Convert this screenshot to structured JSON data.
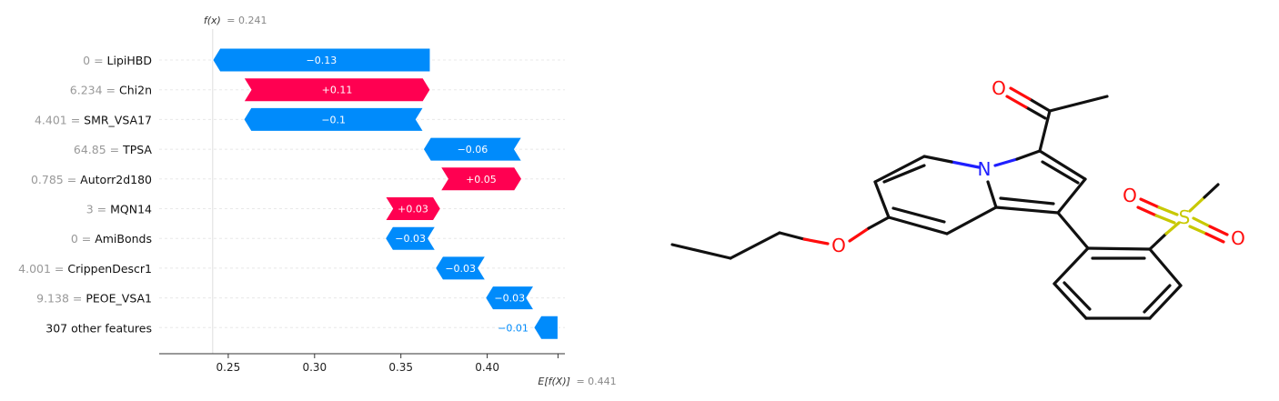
{
  "chart_data": {
    "type": "waterfall",
    "fx_label": "f(x)",
    "fx_value_text": "= 0.241",
    "fx": 0.241,
    "ex_label": "E[f(X)]",
    "ex_value_text": "= 0.441",
    "base_value": 0.441,
    "xlim": [
      0.21,
      0.445
    ],
    "xticks": [
      0.25,
      0.3,
      0.35,
      0.4
    ],
    "xtick_labels": [
      "0.25",
      "0.30",
      "0.35",
      "0.40"
    ],
    "positive_color": "#ff0051",
    "negative_color": "#008bfb",
    "features": [
      {
        "value": "0",
        "name": "LipiHBD",
        "contribution": -0.126,
        "label": "−0.13"
      },
      {
        "value": "6.234",
        "name": "Chi2n",
        "contribution": 0.108,
        "label": "+0.11"
      },
      {
        "value": "4.401",
        "name": "SMR_VSA17",
        "contribution": -0.104,
        "label": "−0.1"
      },
      {
        "value": "64.85",
        "name": "TPSA",
        "contribution": -0.057,
        "label": "−0.06"
      },
      {
        "value": "0.785",
        "name": "Autorr2d180",
        "contribution": 0.047,
        "label": "+0.05"
      },
      {
        "value": "3",
        "name": "MQN14",
        "contribution": 0.032,
        "label": "+0.03"
      },
      {
        "value": "0",
        "name": "AmiBonds",
        "contribution": -0.029,
        "label": "−0.03"
      },
      {
        "value": "4.001",
        "name": "CrippenDescr1",
        "contribution": -0.029,
        "label": "−0.03"
      },
      {
        "value": "9.138",
        "name": "PEOE_VSA1",
        "contribution": -0.028,
        "label": "−0.03"
      },
      {
        "value": "",
        "name": "307 other features",
        "contribution": -0.014,
        "label": "−0.01"
      }
    ]
  },
  "molecule": {
    "atoms": {
      "o1": "O",
      "n1": "N",
      "s1": "S",
      "o2": "O",
      "o3": "O",
      "o4": "O"
    },
    "colors": {
      "bond": "#111111",
      "oxygen": "#ff0d0d",
      "nitrogen": "#1f1fff",
      "sulfur": "#c8c800"
    }
  }
}
